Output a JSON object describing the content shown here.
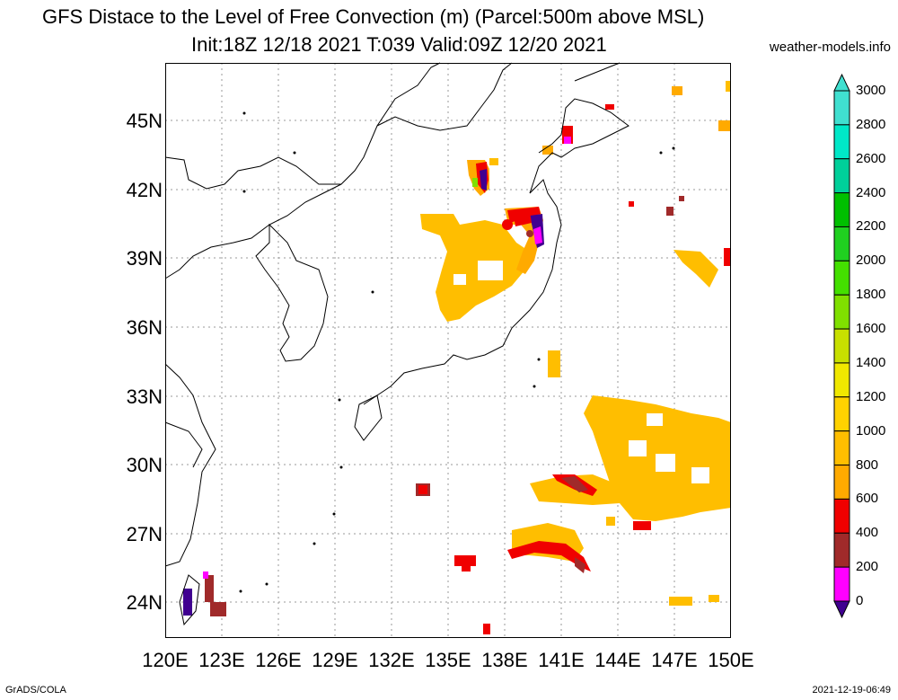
{
  "header": {
    "title_line1": "GFS Distace to the Level of Free Convection (m) (Parcel:500m above MSL)",
    "title_line2": "Init:18Z 12/18 2021 T:039 Valid:09Z 12/20 2021",
    "source": "weather-models.info"
  },
  "axes": {
    "lat_labels": [
      "45N",
      "42N",
      "39N",
      "36N",
      "33N",
      "30N",
      "27N",
      "24N"
    ],
    "lon_labels": [
      "120E",
      "123E",
      "126E",
      "129E",
      "132E",
      "135E",
      "138E",
      "141E",
      "144E",
      "147E",
      "150E"
    ]
  },
  "colorbar": {
    "labels": [
      "3000",
      "2800",
      "2600",
      "2400",
      "2200",
      "2000",
      "1800",
      "1600",
      "1400",
      "1200",
      "1000",
      "800",
      "600",
      "400",
      "200",
      "0"
    ],
    "colors": [
      "#40e0d0",
      "#00e8c8",
      "#00d09a",
      "#00c000",
      "#20d020",
      "#44e000",
      "#80e000",
      "#c8e000",
      "#f0e800",
      "#ffd200",
      "#ffbe00",
      "#ffaa00",
      "#f00000",
      "#a02a2a",
      "#ff00ff",
      "#400090"
    ]
  },
  "footer": {
    "left": "GrADS/COLA",
    "right": "2021-12-19-06:49"
  }
}
